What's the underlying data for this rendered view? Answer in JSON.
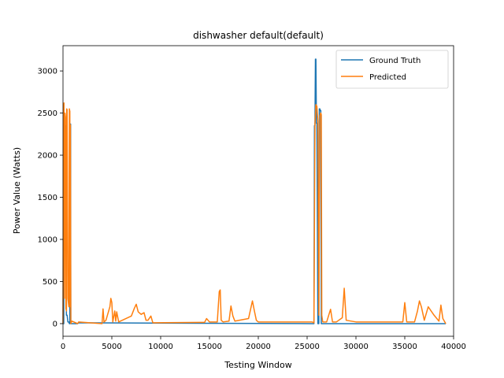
{
  "chart_data": {
    "type": "line",
    "title": "dishwasher default(default)",
    "xlabel": "Testing Window",
    "ylabel": "Power Value (Watts)",
    "xlim": [
      0,
      40000
    ],
    "ylim": [
      -150,
      3300
    ],
    "xticks": [
      0,
      5000,
      10000,
      15000,
      20000,
      25000,
      30000,
      35000,
      40000
    ],
    "yticks": [
      0,
      500,
      1000,
      1500,
      2000,
      2500,
      3000
    ],
    "grid": false,
    "legend_position": "top-right",
    "series": [
      {
        "name": "Ground Truth",
        "color": "#1f77b4",
        "x": [
          0,
          80,
          100,
          180,
          230,
          300,
          350,
          420,
          500,
          600,
          650,
          700,
          720,
          780,
          800,
          1500,
          1600,
          25500,
          25700,
          25750,
          25800,
          25850,
          25900,
          25950,
          26000,
          26100,
          26200,
          26250,
          26300,
          26350,
          26400,
          26450,
          26500,
          26600,
          39200
        ],
        "y": [
          0,
          0,
          2400,
          2400,
          2350,
          2350,
          100,
          100,
          20,
          20,
          0,
          0,
          2370,
          2370,
          0,
          0,
          10,
          0,
          0,
          2350,
          2350,
          3140,
          3140,
          2380,
          2380,
          0,
          0,
          2550,
          2550,
          2530,
          2530,
          0,
          0,
          0,
          0
        ]
      },
      {
        "name": "Predicted",
        "color": "#ff7f0e",
        "x": [
          0,
          60,
          100,
          150,
          200,
          250,
          300,
          350,
          380,
          420,
          500,
          600,
          650,
          700,
          730,
          760,
          800,
          900,
          1500,
          1600,
          4000,
          4100,
          4200,
          4400,
          4800,
          4900,
          5000,
          5100,
          5300,
          5400,
          5500,
          5700,
          7000,
          7300,
          7500,
          7700,
          8000,
          8300,
          8500,
          8700,
          9000,
          9200,
          14500,
          14700,
          15000,
          15800,
          16000,
          16100,
          16200,
          16400,
          17000,
          17200,
          17400,
          17600,
          19000,
          19400,
          19600,
          19800,
          20000,
          25500,
          25700,
          25800,
          25900,
          26000,
          26100,
          26200,
          26300,
          26400,
          26450,
          26500,
          26600,
          27000,
          27400,
          27600,
          28000,
          28600,
          28800,
          29000,
          30000,
          34800,
          35000,
          35200,
          36000,
          36300,
          36500,
          36700,
          37000,
          37400,
          38000,
          38500,
          38700,
          38900,
          39200
        ],
        "y": [
          0,
          2600,
          2620,
          300,
          2500,
          2450,
          180,
          150,
          2550,
          2540,
          300,
          200,
          2550,
          2520,
          200,
          2360,
          0,
          30,
          0,
          20,
          0,
          175,
          20,
          40,
          200,
          300,
          250,
          20,
          150,
          30,
          140,
          20,
          90,
          180,
          230,
          140,
          110,
          130,
          40,
          40,
          90,
          10,
          15,
          60,
          20,
          20,
          380,
          400,
          40,
          20,
          30,
          210,
          90,
          30,
          60,
          270,
          150,
          40,
          20,
          20,
          10,
          2360,
          2600,
          2580,
          2400,
          100,
          2470,
          2500,
          2480,
          100,
          20,
          20,
          170,
          20,
          20,
          70,
          420,
          40,
          20,
          20,
          250,
          20,
          20,
          150,
          270,
          200,
          40,
          200,
          100,
          30,
          220,
          60,
          0
        ]
      }
    ]
  }
}
